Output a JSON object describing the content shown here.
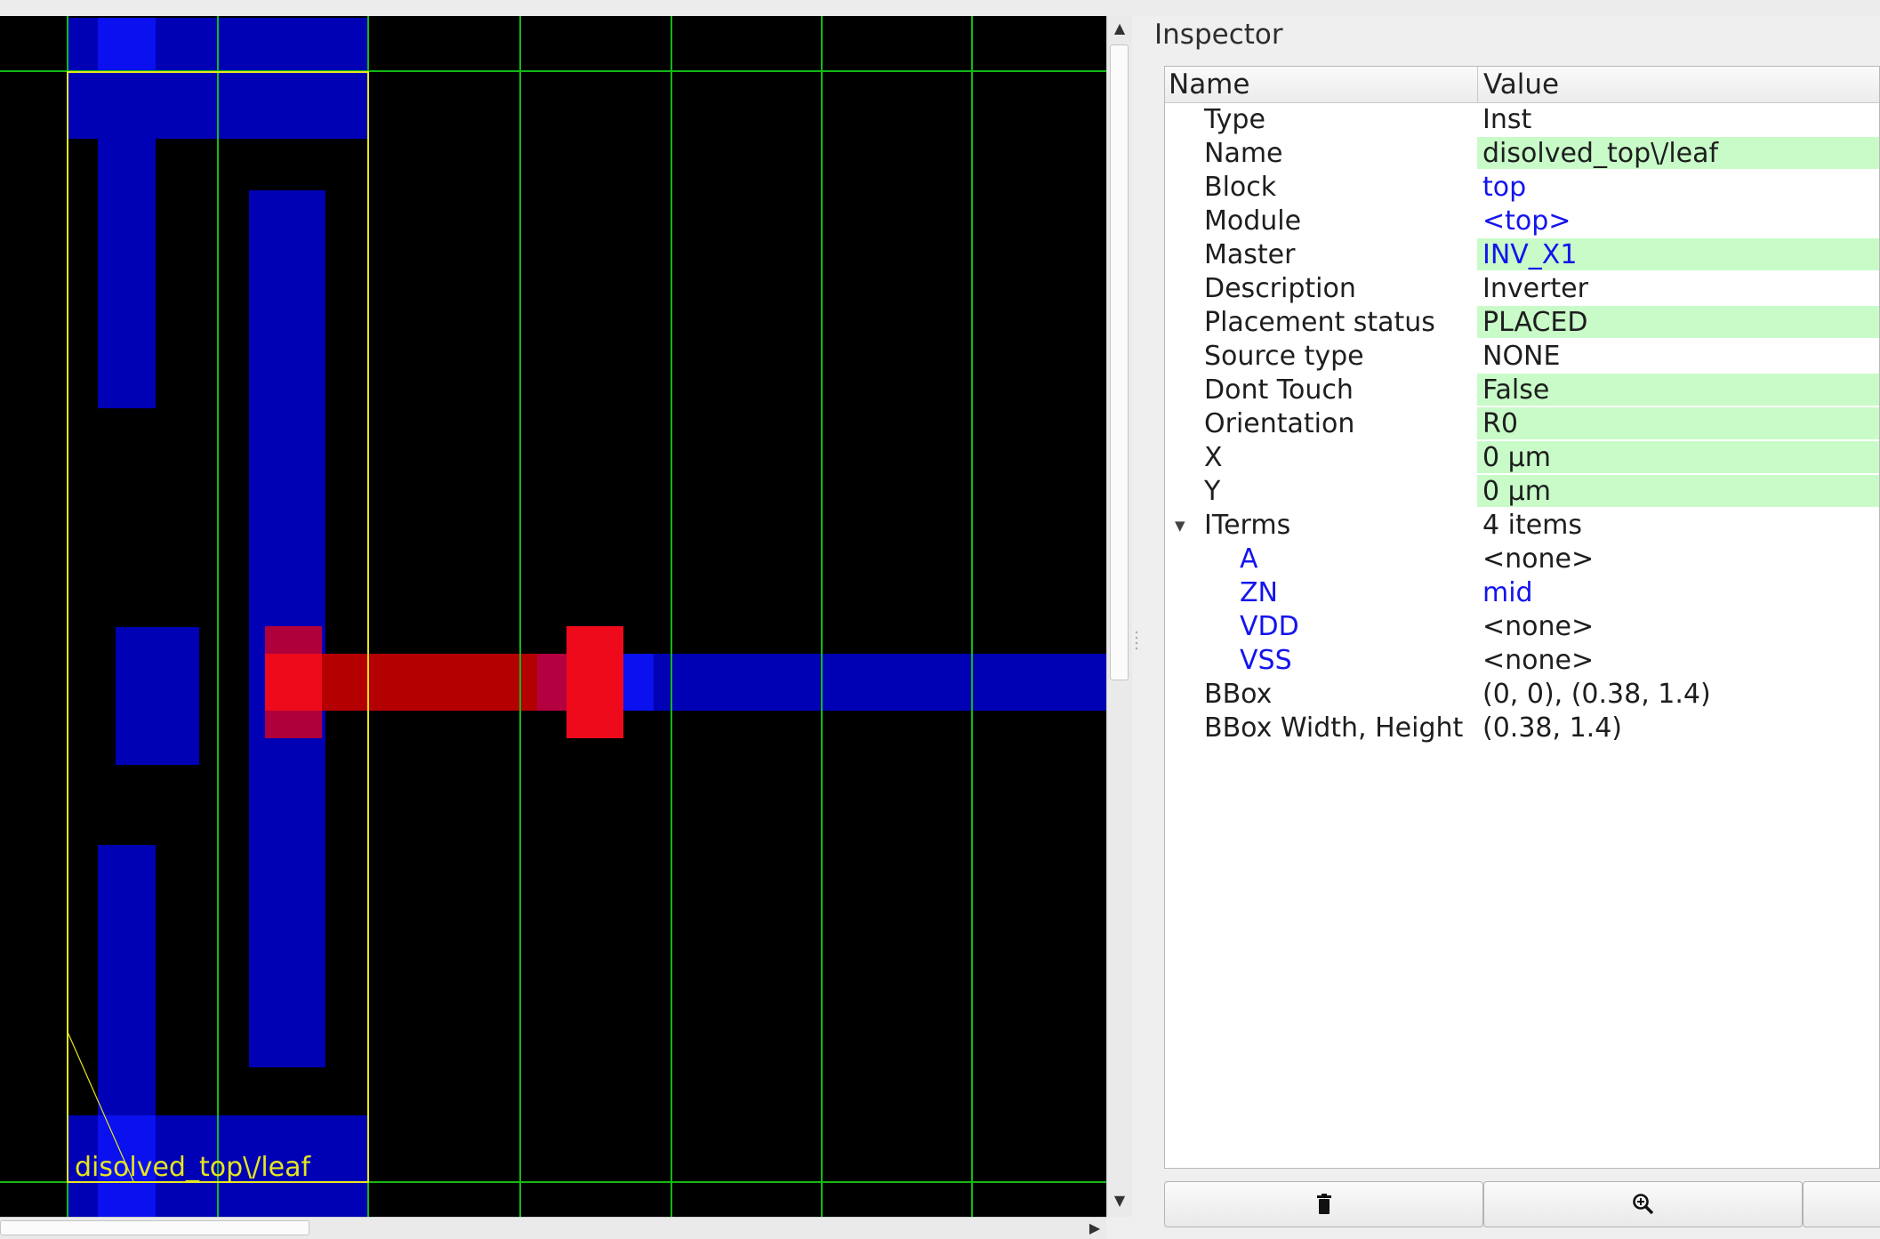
{
  "colors": {
    "canvas_bg": "#000000",
    "metal1": "#0000b4",
    "metal1_bright": "#0a10ee",
    "metal2": "#b40000",
    "via": "#ee0a1a",
    "grid": "#14b814",
    "selection": "#e6e61e",
    "editable_cell": "#c8fbc8",
    "link": "#1414ee"
  },
  "viewer": {
    "instance_label": "disolved_top\\/leaf"
  },
  "inspector": {
    "title": "Inspector",
    "columns": {
      "name": "Name",
      "value": "Value"
    },
    "rows": [
      {
        "name": "Type",
        "value": "Inst"
      },
      {
        "name": "Name",
        "value": "disolved_top\\/leaf"
      },
      {
        "name": "Block",
        "value": "top"
      },
      {
        "name": "Module",
        "value": "<top>"
      },
      {
        "name": "Master",
        "value": "INV_X1"
      },
      {
        "name": "Description",
        "value": "Inverter"
      },
      {
        "name": "Placement status",
        "value": "PLACED"
      },
      {
        "name": "Source type",
        "value": "NONE"
      },
      {
        "name": "Dont Touch",
        "value": "False"
      },
      {
        "name": "Orientation",
        "value": "R0"
      },
      {
        "name": "X",
        "value": "0 µm"
      },
      {
        "name": "Y",
        "value": "0 µm"
      },
      {
        "name": "ITerms",
        "value": "4 items"
      },
      {
        "name": "A",
        "value": "<none>"
      },
      {
        "name": "ZN",
        "value": "mid"
      },
      {
        "name": "VDD",
        "value": "<none>"
      },
      {
        "name": "VSS",
        "value": "<none>"
      },
      {
        "name": "BBox",
        "value": "(0, 0), (0.38, 1.4)"
      },
      {
        "name": "BBox Width, Height",
        "value": "(0.38, 1.4)"
      }
    ],
    "buttons": [
      {
        "icon": "trash-icon"
      },
      {
        "icon": "zoom-in-icon"
      },
      {
        "icon": "unknown-icon"
      }
    ]
  }
}
